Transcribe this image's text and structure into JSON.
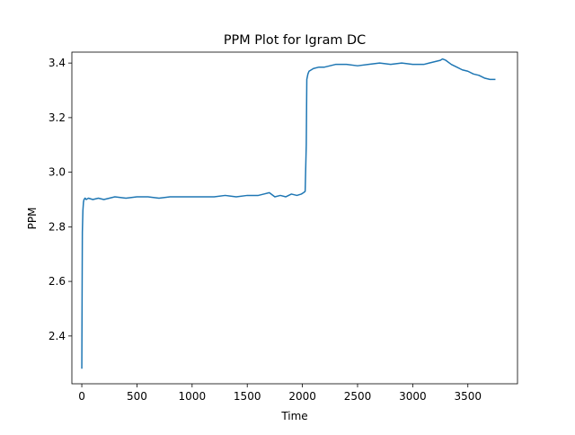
{
  "chart_data": {
    "type": "line",
    "title": "PPM Plot for Igram DC",
    "xlabel": "Time",
    "ylabel": "PPM",
    "xlim": [
      -90,
      3950
    ],
    "ylim": [
      2.225,
      3.44
    ],
    "xticks": [
      0,
      500,
      1000,
      1500,
      2000,
      2500,
      3000,
      3500
    ],
    "xtick_labels": [
      "0",
      "500",
      "1000",
      "1500",
      "2000",
      "2500",
      "3000",
      "3500"
    ],
    "yticks": [
      2.4,
      2.6,
      2.8,
      3.0,
      3.2,
      3.4
    ],
    "ytick_labels": [
      "2.4",
      "2.6",
      "2.8",
      "3.0",
      "3.2",
      "3.4"
    ],
    "grid": false,
    "legend": "none",
    "color": "#1f77b4",
    "series": [
      {
        "x": [
          0,
          5,
          10,
          15,
          20,
          30,
          40,
          60,
          100,
          150,
          200,
          250,
          300,
          400,
          500,
          600,
          700,
          800,
          900,
          1000,
          1100,
          1200,
          1300,
          1400,
          1500,
          1600,
          1650,
          1700,
          1750,
          1800,
          1850,
          1900,
          1950,
          1990,
          2010,
          2025,
          2035,
          2040,
          2050,
          2060,
          2080,
          2100,
          2150,
          2200,
          2250,
          2300,
          2400,
          2500,
          2600,
          2700,
          2800,
          2900,
          3000,
          3100,
          3150,
          3200,
          3250,
          3270,
          3300,
          3350,
          3400,
          3450,
          3500,
          3550,
          3600,
          3650,
          3700,
          3750
        ],
        "y": [
          2.28,
          2.78,
          2.86,
          2.89,
          2.9,
          2.905,
          2.9,
          2.905,
          2.9,
          2.905,
          2.9,
          2.905,
          2.91,
          2.905,
          2.91,
          2.91,
          2.905,
          2.91,
          2.91,
          2.91,
          2.91,
          2.91,
          2.915,
          2.91,
          2.915,
          2.915,
          2.92,
          2.925,
          2.91,
          2.915,
          2.91,
          2.92,
          2.915,
          2.92,
          2.925,
          2.93,
          3.1,
          3.34,
          3.36,
          3.37,
          3.375,
          3.38,
          3.385,
          3.385,
          3.39,
          3.395,
          3.395,
          3.39,
          3.395,
          3.4,
          3.395,
          3.4,
          3.395,
          3.395,
          3.4,
          3.405,
          3.41,
          3.415,
          3.41,
          3.395,
          3.385,
          3.375,
          3.37,
          3.36,
          3.355,
          3.345,
          3.34,
          3.34
        ]
      }
    ]
  }
}
